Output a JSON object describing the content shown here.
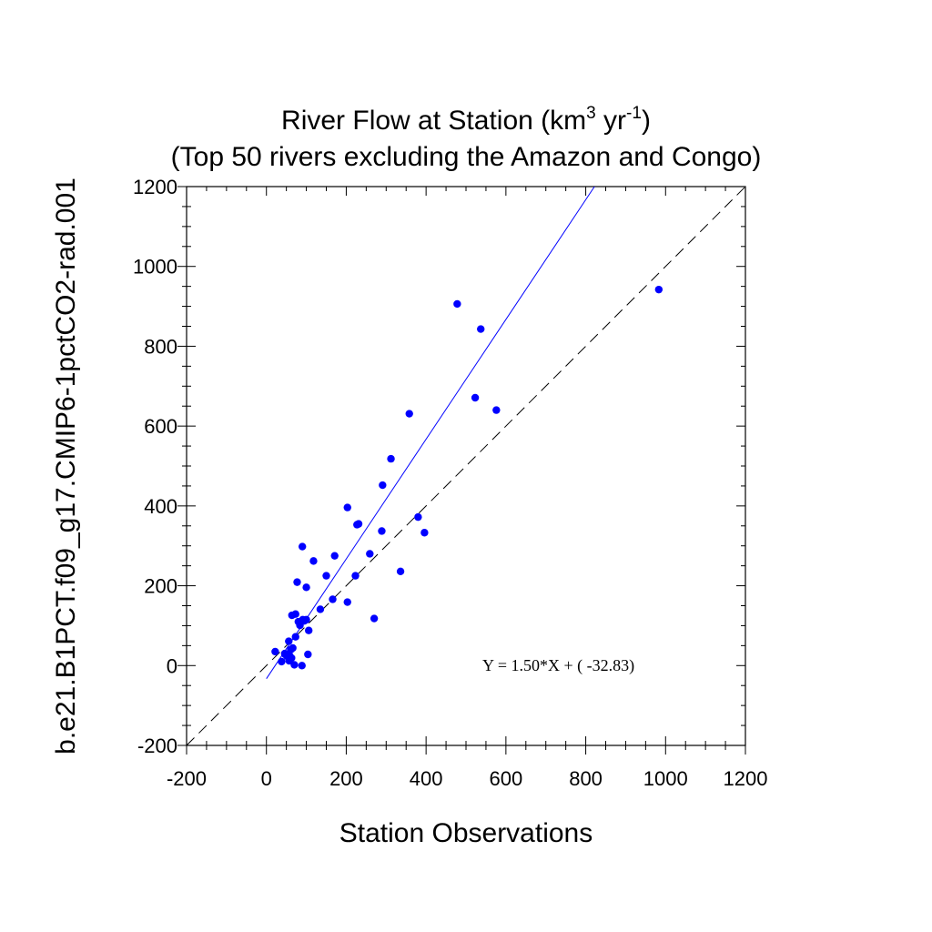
{
  "chart_data": {
    "type": "scatter",
    "title_line1": "River Flow at Station (km",
    "title_sup1": "3",
    "title_mid": " yr",
    "title_sup2": "-1",
    "title_end": ")",
    "title_line2": "(Top 50 rivers excluding the Amazon and Congo)",
    "xlabel": "Station Observations",
    "ylabel": "b.e21.B1PCT.f09_g17.CMIP6-1pctCO2-rad.001",
    "xlim": [
      -200,
      1200
    ],
    "ylim": [
      -200,
      1200
    ],
    "x_ticks": [
      "-200",
      "0",
      "200",
      "400",
      "600",
      "800",
      "1000",
      "1200"
    ],
    "y_ticks": [
      "-200",
      "0",
      "200",
      "400",
      "600",
      "800",
      "1000",
      "1200"
    ],
    "grid": false,
    "point_color": "#0000ff",
    "fit_line": {
      "slope": 1.5,
      "intercept": -32.83,
      "color": "#0000ff"
    },
    "identity_line": {
      "slope": 1,
      "intercept": 0,
      "style": "dashed",
      "color": "#000000"
    },
    "equation": "Y =  1.50*X + (  -32.83)",
    "points": [
      [
        983,
        942
      ],
      [
        478,
        906
      ],
      [
        537,
        843
      ],
      [
        523,
        671
      ],
      [
        576,
        640
      ],
      [
        358,
        631
      ],
      [
        312,
        518
      ],
      [
        291,
        452
      ],
      [
        203,
        396
      ],
      [
        380,
        372
      ],
      [
        231,
        355
      ],
      [
        227,
        353
      ],
      [
        396,
        333
      ],
      [
        289,
        337
      ],
      [
        90,
        298
      ],
      [
        171,
        275
      ],
      [
        259,
        280
      ],
      [
        118,
        262
      ],
      [
        150,
        225
      ],
      [
        223,
        225
      ],
      [
        336,
        236
      ],
      [
        77,
        209
      ],
      [
        100,
        196
      ],
      [
        166,
        166
      ],
      [
        203,
        159
      ],
      [
        135,
        141
      ],
      [
        73,
        129
      ],
      [
        64,
        126
      ],
      [
        91,
        115
      ],
      [
        100,
        115
      ],
      [
        270,
        118
      ],
      [
        84,
        101
      ],
      [
        106,
        88
      ],
      [
        73,
        72
      ],
      [
        56,
        61
      ],
      [
        66,
        44
      ],
      [
        22,
        35
      ],
      [
        47,
        28
      ],
      [
        58,
        25
      ],
      [
        104,
        28
      ],
      [
        38,
        10
      ],
      [
        57,
        12
      ],
      [
        70,
        2
      ],
      [
        89,
        0
      ],
      [
        63,
        19
      ],
      [
        52,
        23
      ],
      [
        80,
        110
      ],
      [
        95,
        112
      ],
      [
        61,
        40
      ],
      [
        46,
        30
      ]
    ]
  }
}
